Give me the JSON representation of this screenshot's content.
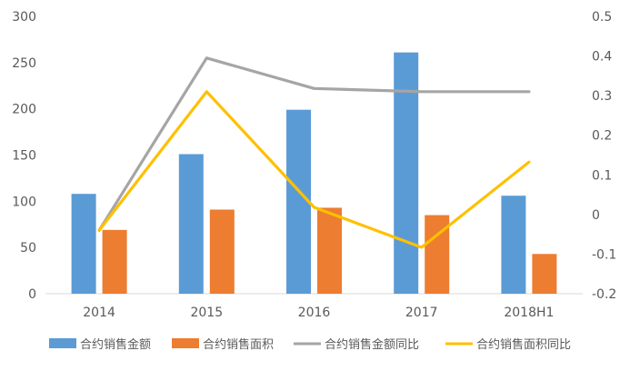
{
  "chart_data": {
    "type": "bar",
    "categories": [
      "2014",
      "2015",
      "2016",
      "2017",
      "2018H1"
    ],
    "series": [
      {
        "name": "合约销售金额",
        "kind": "bar",
        "axis": "left",
        "color": "#5B9BD5",
        "values": [
          108,
          151,
          199,
          261,
          106
        ]
      },
      {
        "name": "合约销售面积",
        "kind": "bar",
        "axis": "left",
        "color": "#ED7D31",
        "values": [
          69,
          91,
          93,
          85,
          43
        ]
      },
      {
        "name": "合约销售金额同比",
        "kind": "line",
        "axis": "right",
        "color": "#A5A5A5",
        "values": [
          -0.04,
          0.395,
          0.318,
          0.31,
          0.31
        ]
      },
      {
        "name": "合约销售面积同比",
        "kind": "line",
        "axis": "right",
        "color": "#FFC000",
        "values": [
          -0.04,
          0.31,
          0.018,
          -0.083,
          0.132
        ]
      }
    ],
    "left_axis": {
      "ylim": [
        0,
        300
      ],
      "ticks": [
        "0",
        "50",
        "100",
        "150",
        "200",
        "250",
        "300"
      ]
    },
    "right_axis": {
      "ylim": [
        -0.2,
        0.5
      ],
      "ticks": [
        "-0.2",
        "-0.1",
        "0",
        "0.1",
        "0.2",
        "0.3",
        "0.4",
        "0.5"
      ]
    },
    "grid": false,
    "legend": "bottom"
  }
}
